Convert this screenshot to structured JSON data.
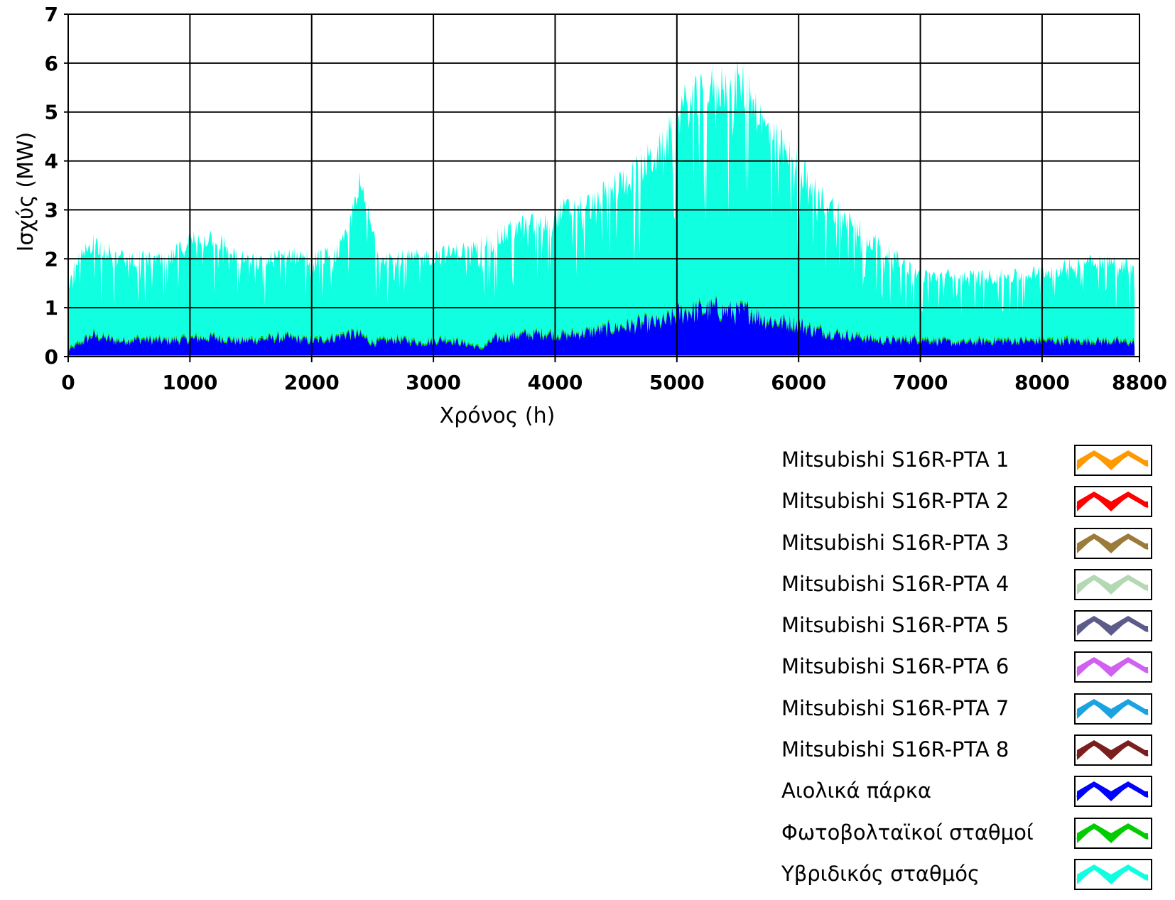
{
  "chart_data": {
    "type": "area",
    "title": "",
    "xlabel": "Χρόνος (h)",
    "ylabel": "Ισχύς (MW)",
    "xlim": [
      0,
      8800
    ],
    "ylim": [
      0,
      7
    ],
    "xticks": [
      "0",
      "1000",
      "2000",
      "3000",
      "4000",
      "5000",
      "6000",
      "7000",
      "8000",
      "8800"
    ],
    "yticks": [
      "0",
      "1",
      "2",
      "3",
      "4",
      "5",
      "6",
      "7"
    ],
    "grid": true,
    "legend_position": "bottom-right",
    "x_end": 8760,
    "series_stack_order": "bottom-to-top",
    "series": [
      {
        "name": "Αιολικά πάρκα",
        "color": "#0000ff",
        "envelope_x": [
          0,
          200,
          400,
          600,
          800,
          1000,
          1200,
          1400,
          1600,
          1800,
          2000,
          2200,
          2300,
          2400,
          2500,
          2700,
          2900,
          3100,
          3300,
          3400,
          3500,
          3700,
          3900,
          4100,
          4300,
          4500,
          4700,
          4900,
          5000,
          5100,
          5200,
          5300,
          5400,
          5500,
          5600,
          5700,
          5800,
          5900,
          6000,
          6100,
          6300,
          6500,
          6700,
          7000,
          7300,
          7600,
          7900,
          8200,
          8500,
          8760
        ],
        "envelope_y": [
          0.15,
          0.55,
          0.4,
          0.45,
          0.4,
          0.45,
          0.5,
          0.4,
          0.45,
          0.5,
          0.4,
          0.5,
          0.6,
          0.55,
          0.35,
          0.45,
          0.35,
          0.45,
          0.3,
          0.2,
          0.45,
          0.55,
          0.6,
          0.55,
          0.65,
          0.75,
          0.85,
          0.9,
          1.1,
          1.2,
          1.2,
          1.25,
          1.2,
          1.15,
          1.2,
          1.0,
          0.9,
          0.9,
          0.85,
          0.7,
          0.6,
          0.5,
          0.4,
          0.45,
          0.35,
          0.4,
          0.4,
          0.4,
          0.4,
          0.35
        ]
      },
      {
        "name": "Φωτοβολταϊκοί σταθμοί",
        "color": "#00cc00",
        "envelope_x": [
          0,
          8760
        ],
        "envelope_y": [
          0.06,
          0.06
        ]
      },
      {
        "name": "Υβριδικός σταθμός",
        "color": "#10ffe0",
        "envelope_x": [
          0,
          200,
          400,
          600,
          800,
          1000,
          1200,
          1400,
          1600,
          1800,
          2000,
          2200,
          2300,
          2380,
          2450,
          2550,
          2700,
          2900,
          3100,
          3300,
          3500,
          3700,
          3900,
          4100,
          4300,
          4500,
          4700,
          4900,
          5000,
          5100,
          5200,
          5300,
          5400,
          5500,
          5600,
          5700,
          5800,
          5900,
          6000,
          6100,
          6200,
          6400,
          6600,
          6800,
          7000,
          7200,
          7400,
          7600,
          7800,
          8000,
          8200,
          8400,
          8600,
          8760
        ],
        "envelope_y": [
          1.8,
          2.6,
          2.2,
          2.2,
          2.1,
          2.6,
          2.7,
          2.2,
          2.1,
          2.3,
          2.2,
          2.3,
          2.7,
          3.9,
          3.3,
          2.3,
          2.2,
          2.2,
          2.3,
          2.4,
          2.6,
          2.9,
          3.0,
          3.3,
          3.4,
          3.8,
          4.2,
          4.7,
          5.4,
          5.7,
          5.8,
          6.0,
          6.1,
          6.1,
          6.0,
          5.2,
          4.9,
          4.5,
          4.3,
          3.8,
          3.5,
          3.1,
          2.6,
          2.2,
          1.8,
          1.8,
          1.8,
          1.8,
          1.8,
          1.9,
          2.0,
          2.2,
          2.1,
          2.0
        ]
      }
    ],
    "legend": [
      {
        "name": "Mitsubishi S16R-PTA 1",
        "color": "#ff9900"
      },
      {
        "name": "Mitsubishi S16R-PTA 2",
        "color": "#ff0000"
      },
      {
        "name": "Mitsubishi S16R-PTA 3",
        "color": "#9a7b3a"
      },
      {
        "name": "Mitsubishi S16R-PTA 4",
        "color": "#b4d8b4"
      },
      {
        "name": "Mitsubishi S16R-PTA 5",
        "color": "#5c5c8a"
      },
      {
        "name": "Mitsubishi S16R-PTA 6",
        "color": "#d060f0"
      },
      {
        "name": "Mitsubishi S16R-PTA 7",
        "color": "#1aa3e0"
      },
      {
        "name": "Mitsubishi S16R-PTA 8",
        "color": "#7a1e1e"
      },
      {
        "name": "Αιολικά πάρκα",
        "color": "#0000ff"
      },
      {
        "name": "Φωτοβολταϊκοί σταθμοί",
        "color": "#00cc00"
      },
      {
        "name": "Υβριδικός σταθμός",
        "color": "#10ffe0"
      }
    ]
  }
}
